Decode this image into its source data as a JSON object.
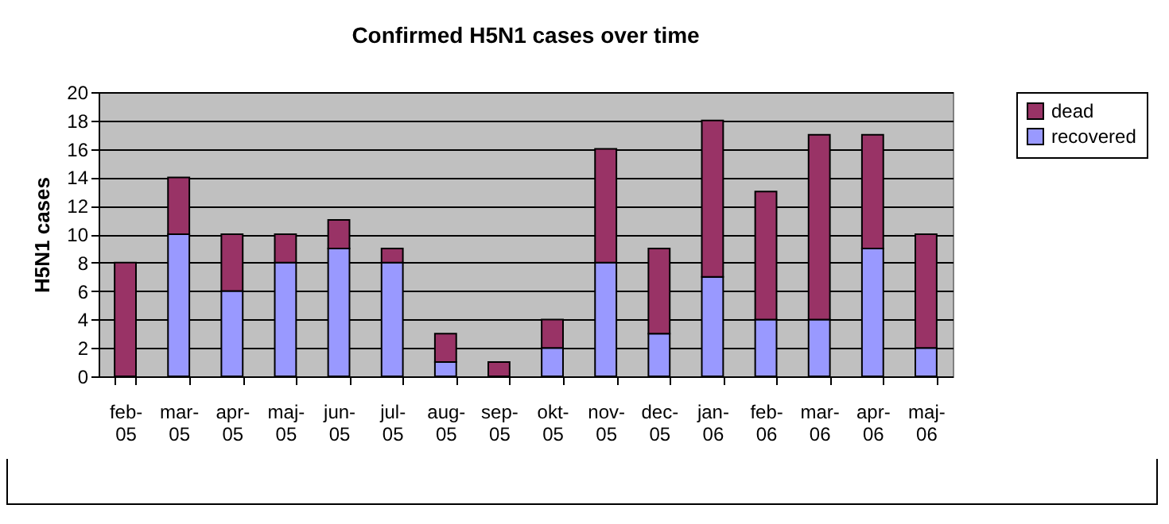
{
  "chart_data": {
    "type": "bar",
    "title": "Confirmed H5N1 cases over time",
    "ylabel": "H5N1 cases",
    "categories": [
      "feb-05",
      "mar-05",
      "apr-05",
      "maj-05",
      "jun-05",
      "jul-05",
      "aug-05",
      "sep-05",
      "okt-05",
      "nov-05",
      "dec-05",
      "jan-06",
      "feb-06",
      "mar-06",
      "apr-06",
      "maj-06"
    ],
    "series": [
      {
        "name": "recovered",
        "color": "#9999ff",
        "values": [
          0,
          10,
          6,
          8,
          9,
          8,
          1,
          0,
          2,
          8,
          3,
          7,
          4,
          4,
          9,
          2
        ]
      },
      {
        "name": "dead",
        "color": "#993366",
        "values": [
          8,
          4,
          4,
          2,
          2,
          1,
          2,
          1,
          2,
          8,
          6,
          11,
          9,
          13,
          8,
          8
        ]
      }
    ],
    "stacked": true,
    "ylim": [
      0,
      20
    ],
    "yticks": [
      0,
      2,
      4,
      6,
      8,
      10,
      12,
      14,
      16,
      18,
      20
    ],
    "grid": "y",
    "legend": "right"
  }
}
